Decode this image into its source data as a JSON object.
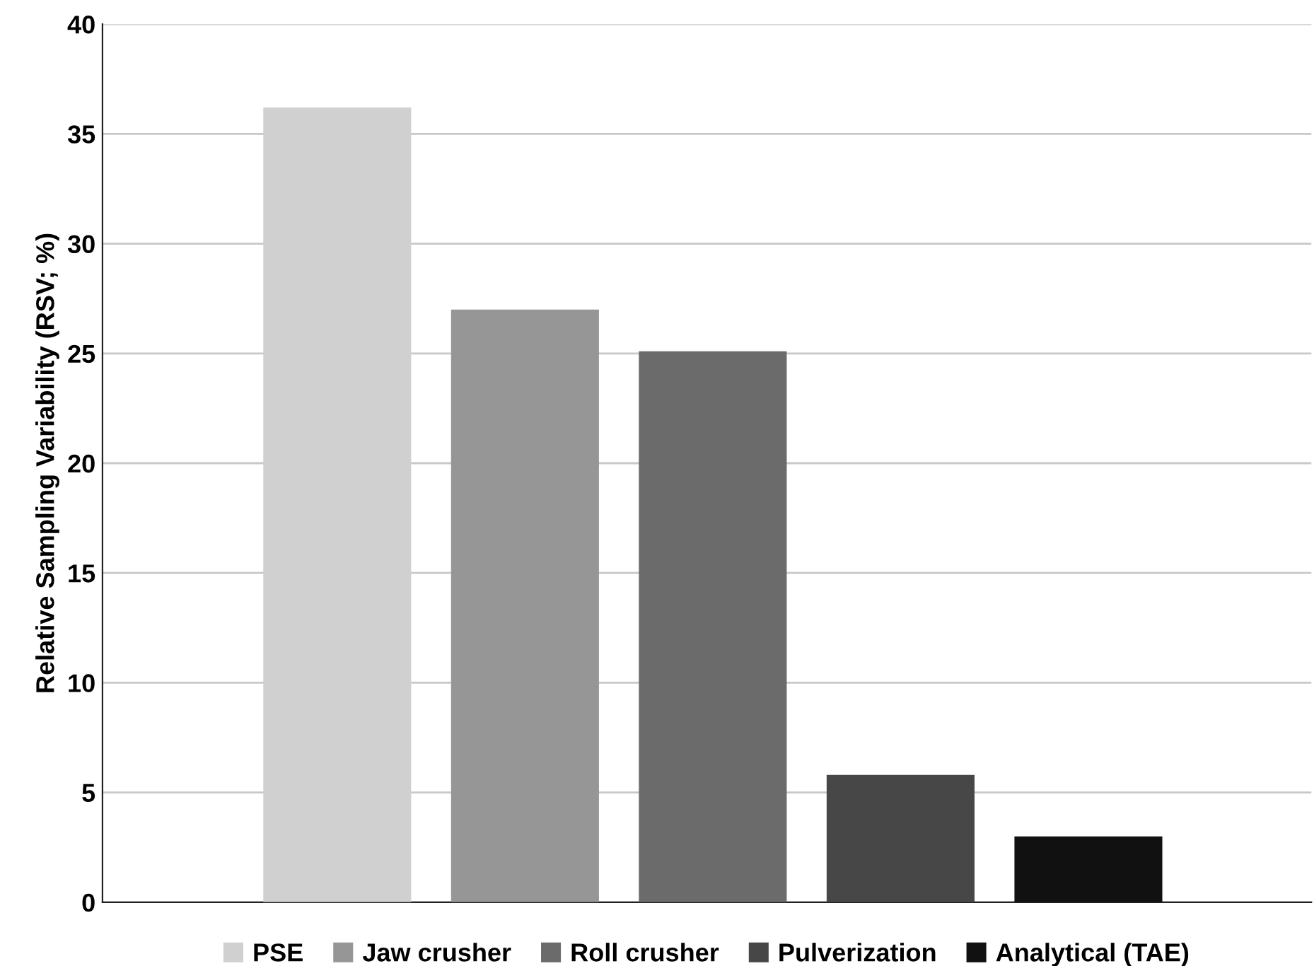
{
  "chart_data": {
    "type": "bar",
    "ylabel": "Relative Sampling Variability (RSV; %)",
    "categories": [
      null
    ],
    "series": [
      {
        "name": "PSE",
        "color": "#d0d0d0",
        "values": [
          36.2
        ]
      },
      {
        "name": "Jaw crusher",
        "color": "#969696",
        "values": [
          27.0
        ]
      },
      {
        "name": "Roll crusher",
        "color": "#6b6b6b",
        "values": [
          25.1
        ]
      },
      {
        "name": "Pulverization",
        "color": "#474747",
        "values": [
          5.8
        ]
      },
      {
        "name": "Analytical (TAE)",
        "color": "#111111",
        "values": [
          3.0
        ]
      }
    ],
    "ylim": [
      0,
      40
    ],
    "yticks": [
      0,
      5,
      10,
      15,
      20,
      25,
      30,
      35,
      40
    ],
    "grid": "y",
    "legend": "bottom",
    "tick_labels": "y"
  }
}
